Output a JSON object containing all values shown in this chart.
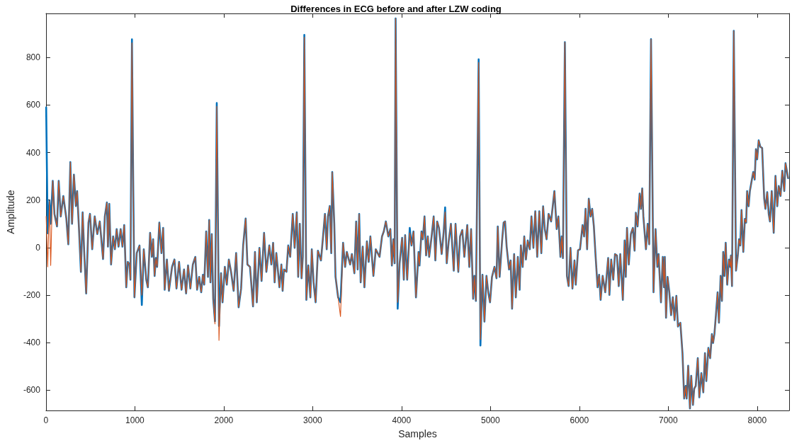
{
  "chart_data": {
    "type": "line",
    "title": "Differences in ECG before and after LZW coding",
    "xlabel": "Samples",
    "ylabel": "Amplitude",
    "xlim": [
      0,
      8360
    ],
    "xticks": [
      0,
      1000,
      2000,
      3000,
      4000,
      5000,
      6000,
      7000,
      8000
    ],
    "ylim": [
      -685,
      985
    ],
    "yticks": [
      -600,
      -400,
      -200,
      0,
      200,
      400,
      600,
      800
    ],
    "line_style": "solid",
    "x": [
      2,
      19,
      39,
      53,
      76,
      95,
      124,
      143,
      166,
      195,
      229,
      251,
      274,
      293,
      314,
      336,
      350,
      370,
      393,
      412,
      430,
      452,
      478,
      495,
      520,
      548,
      577,
      605,
      642,
      662,
      685,
      697,
      712,
      732,
      755,
      775,
      795,
      816,
      840,
      860,
      880,
      903,
      920,
      939,
      950,
      967,
      982,
      995,
      1021,
      1052,
      1078,
      1100,
      1128,
      1146,
      1171,
      1191,
      1205,
      1222,
      1236,
      1250,
      1275,
      1299,
      1318,
      1335,
      1360,
      1383,
      1418,
      1445,
      1468,
      1497,
      1525,
      1553,
      1576,
      1598,
      1624,
      1652,
      1680,
      1700,
      1723,
      1746,
      1765,
      1780,
      1802,
      1822,
      1836,
      1850,
      1865,
      1881,
      1901,
      1921,
      1946,
      1969,
      1986,
      2012,
      2034,
      2057,
      2082,
      2111,
      2139,
      2167,
      2195,
      2218,
      2246,
      2266,
      2295,
      2329,
      2351,
      2371,
      2401,
      2425,
      2453,
      2479,
      2512,
      2535,
      2555,
      2572,
      2591,
      2626,
      2648,
      2662,
      2677,
      2705,
      2725,
      2747,
      2776,
      2797,
      2821,
      2837,
      2855,
      2875,
      2889,
      2906,
      2929,
      2951,
      2974,
      2990,
      3010,
      3033,
      3059,
      3093,
      3114,
      3138,
      3158,
      3172,
      3192,
      3209,
      3220,
      3243,
      3257,
      3286,
      3313,
      3342,
      3365,
      3384,
      3421,
      3441,
      3469,
      3489,
      3506,
      3523,
      3540,
      3563,
      3582,
      3610,
      3630,
      3649,
      3683,
      3710,
      3752,
      3780,
      3800,
      3823,
      3851,
      3874,
      3891,
      3907,
      3922,
      3933,
      3956,
      3978,
      4006,
      4025,
      4040,
      4063,
      4092,
      4112,
      4134,
      4162,
      4191,
      4202,
      4224,
      4239,
      4258,
      4276,
      4295,
      4310,
      4338,
      4361,
      4380,
      4400,
      4421,
      4451,
      4474,
      4490,
      4508,
      4530,
      4555,
      4587,
      4607,
      4638,
      4658,
      4683,
      4706,
      4739,
      4762,
      4782,
      4805,
      4819,
      4836,
      4867,
      4887,
      4910,
      4932,
      4955,
      4975,
      4995,
      5017,
      5045,
      5068,
      5082,
      5103,
      5130,
      5148,
      5164,
      5182,
      5209,
      5227,
      5243,
      5266,
      5285,
      5308,
      5328,
      5342,
      5362,
      5380,
      5399,
      5419,
      5442,
      5461,
      5483,
      5504,
      5526,
      5549,
      5572,
      5592,
      5611,
      5631,
      5654,
      5682,
      5719,
      5745,
      5764,
      5787,
      5800,
      5815,
      5837,
      5860,
      5879,
      5900,
      5922,
      5945,
      5959,
      5985,
      6007,
      6036,
      6053,
      6070,
      6087,
      6106,
      6126,
      6144,
      6163,
      6183,
      6205,
      6222,
      6239,
      6262,
      6291,
      6324,
      6338,
      6358,
      6381,
      6401,
      6423,
      6443,
      6460,
      6489,
      6509,
      6522,
      6536,
      6556,
      6579,
      6602,
      6621,
      6635,
      6655,
      6678,
      6692,
      6707,
      6720,
      6749,
      6768,
      6786,
      6806,
      6834,
      6857,
      6877,
      6891,
      6918,
      6938,
      6952,
      6961,
      6975,
      6992,
      7012,
      7032,
      7051,
      7071,
      7091,
      7109,
      7136,
      7160,
      7179,
      7196,
      7207,
      7224,
      7244,
      7258,
      7278,
      7292,
      7309,
      7332,
      7349,
      7372,
      7394,
      7413,
      7428,
      7451,
      7471,
      7491,
      7504,
      7519,
      7536,
      7555,
      7570,
      7589,
      7604,
      7618,
      7632,
      7646,
      7663,
      7683,
      7697,
      7705,
      7717,
      7737,
      7762,
      7782,
      7796,
      7810,
      7824,
      7844,
      7862,
      7876,
      7887,
      7904,
      7918,
      7938,
      7956,
      7972,
      7986,
      8000,
      8017,
      8036,
      8056,
      8079,
      8093,
      8113,
      8130,
      8144,
      8164,
      8186,
      8206,
      8226,
      8243,
      8263,
      8283,
      8305,
      8319,
      8348
    ],
    "series": [
      {
        "color": "#0072bd",
        "values": [
          590,
          60,
          196,
          100,
          281,
          142,
          89,
          281,
          131,
          217,
          122,
          14,
          360,
          100,
          307,
          175,
          238,
          89,
          -102,
          148,
          -18,
          -193,
          105,
          142,
          -7,
          131,
          57,
          110,
          -48,
          131,
          190,
          4,
          184,
          -71,
          47,
          -7,
          78,
          4,
          78,
          4,
          95,
          -167,
          -60,
          -71,
          -135,
          876,
          238,
          -209,
          -23,
          9,
          -241,
          -7,
          -135,
          -167,
          62,
          -39,
          35,
          -119,
          -44,
          -81,
          105,
          -23,
          83,
          -177,
          -50,
          -182,
          -81,
          -50,
          -172,
          -60,
          -177,
          -92,
          -193,
          -75,
          -172,
          -71,
          -39,
          -177,
          -123,
          -188,
          -114,
          -156,
          68,
          -123,
          116,
          -146,
          57,
          -215,
          -310,
          608,
          -330,
          -108,
          -230,
          -81,
          -156,
          -50,
          -102,
          -182,
          -23,
          -251,
          -172,
          9,
          122,
          -71,
          -81,
          -247,
          -18,
          -230,
          -1,
          -140,
          62,
          -102,
          9,
          -71,
          20,
          -146,
          -23,
          -167,
          -71,
          -182,
          -92,
          -102,
          9,
          -39,
          142,
          -1,
          148,
          -123,
          100,
          -129,
          -39,
          895,
          -220,
          -75,
          -209,
          -7,
          -146,
          -230,
          -13,
          -54,
          35,
          142,
          -7,
          131,
          175,
          -23,
          318,
          100,
          -123,
          -209,
          -230,
          20,
          -81,
          -18,
          -71,
          -27,
          -108,
          110,
          -92,
          142,
          -146,
          4,
          -167,
          26,
          -60,
          47,
          -119,
          -7,
          -39,
          47,
          68,
          110,
          47,
          78,
          -75,
          35,
          -66,
          964,
          -257,
          -66,
          41,
          -135,
          52,
          -135,
          83,
          9,
          68,
          -209,
          -18,
          -75,
          68,
          35,
          131,
          -33,
          47,
          -39,
          47,
          131,
          -54,
          110,
          83,
          -27,
          68,
          169,
          -66,
          26,
          100,
          -97,
          100,
          -102,
          47,
          74,
          -39,
          95,
          -81,
          78,
          -215,
          -119,
          -224,
          792,
          -412,
          -114,
          -311,
          -119,
          -188,
          -230,
          -123,
          -81,
          -129,
          89,
          -123,
          26,
          105,
          110,
          4,
          -92,
          -54,
          -257,
          -27,
          -209,
          -39,
          -177,
          9,
          -81,
          47,
          -50,
          30,
          -7,
          131,
          -1,
          153,
          -39,
          153,
          -23,
          174,
          78,
          35,
          142,
          110,
          238,
          78,
          131,
          -39,
          47,
          -44,
          864,
          -119,
          -162,
          -1,
          -172,
          -54,
          -156,
          -11,
          -7,
          95,
          47,
          163,
          -7,
          206,
          131,
          163,
          89,
          -39,
          -167,
          -114,
          -220,
          -119,
          -188,
          -44,
          -199,
          -50,
          -135,
          -27,
          -33,
          -162,
          -27,
          -220,
          30,
          -123,
          83,
          -71,
          57,
          83,
          -13,
          147,
          89,
          227,
          163,
          249,
          131,
          -7,
          100,
          14,
          877,
          -188,
          78,
          -81,
          -27,
          -230,
          -39,
          -167,
          -39,
          -295,
          -123,
          -188,
          -284,
          -209,
          -305,
          -203,
          -332,
          -316,
          -444,
          -635,
          -582,
          -635,
          -497,
          -677,
          -539,
          -662,
          -593,
          -582,
          -465,
          -630,
          -528,
          -609,
          -444,
          -561,
          -422,
          -465,
          -364,
          -401,
          -364,
          -284,
          -188,
          -316,
          -119,
          -224,
          -18,
          -119,
          20,
          -156,
          -50,
          -81,
          -33,
          -162,
          912,
          -97,
          -33,
          35,
          9,
          158,
          -18,
          121,
          105,
          238,
          174,
          238,
          281,
          318,
          286,
          414,
          371,
          451,
          424,
          419,
          206,
          163,
          233,
          142,
          110,
          238,
          62,
          302,
          174,
          259,
          217,
          323,
          238,
          355,
          292
        ]
      },
      {
        "color": "#d95319",
        "values": [
          131,
          -81,
          196,
          -75,
          281,
          142,
          89,
          281,
          131,
          217,
          122,
          14,
          360,
          100,
          307,
          175,
          238,
          89,
          -102,
          148,
          -18,
          -193,
          105,
          142,
          -7,
          131,
          57,
          110,
          -48,
          131,
          190,
          4,
          184,
          -71,
          47,
          -7,
          78,
          4,
          78,
          4,
          95,
          -167,
          -60,
          -71,
          -135,
          861,
          238,
          -209,
          -23,
          9,
          -200,
          -7,
          -135,
          -167,
          62,
          -39,
          35,
          -119,
          -44,
          -81,
          105,
          -23,
          83,
          -177,
          -50,
          -182,
          -81,
          -50,
          -172,
          -60,
          -177,
          -92,
          -193,
          -75,
          -172,
          -71,
          -39,
          -177,
          -123,
          -188,
          -114,
          -156,
          68,
          -123,
          116,
          -146,
          57,
          -215,
          -321,
          594,
          -390,
          -108,
          -230,
          -81,
          -156,
          -50,
          -102,
          -182,
          -23,
          -251,
          -172,
          9,
          122,
          -71,
          -81,
          -247,
          -18,
          -230,
          -1,
          -140,
          62,
          -102,
          9,
          -71,
          20,
          -146,
          -23,
          -167,
          -71,
          -182,
          -92,
          -102,
          9,
          -39,
          142,
          -1,
          148,
          -123,
          100,
          -129,
          -39,
          885,
          -220,
          -75,
          -209,
          -7,
          -146,
          -230,
          -13,
          -54,
          35,
          142,
          -7,
          131,
          175,
          -23,
          318,
          100,
          -123,
          -209,
          -290,
          20,
          -81,
          -18,
          -71,
          -27,
          -108,
          110,
          -92,
          142,
          -146,
          4,
          -167,
          26,
          -60,
          47,
          -119,
          -7,
          -39,
          47,
          68,
          110,
          47,
          78,
          -75,
          35,
          -66,
          964,
          -230,
          -66,
          41,
          -135,
          52,
          -135,
          62,
          9,
          68,
          -209,
          -18,
          -75,
          68,
          35,
          131,
          -33,
          47,
          -39,
          47,
          131,
          -54,
          110,
          83,
          -27,
          68,
          150,
          -66,
          26,
          100,
          -97,
          100,
          -102,
          47,
          74,
          -39,
          95,
          -81,
          78,
          -215,
          -119,
          -224,
          779,
          -386,
          -114,
          -311,
          -119,
          -188,
          -230,
          -123,
          -81,
          -129,
          89,
          -123,
          26,
          105,
          110,
          4,
          -92,
          -54,
          -257,
          -27,
          -209,
          -39,
          -177,
          9,
          -81,
          47,
          -50,
          30,
          -7,
          131,
          -1,
          153,
          -39,
          153,
          -23,
          174,
          78,
          35,
          142,
          110,
          238,
          78,
          131,
          -39,
          47,
          -44,
          864,
          -119,
          -162,
          -1,
          -172,
          -54,
          -156,
          -11,
          -7,
          95,
          47,
          163,
          -7,
          206,
          131,
          163,
          89,
          -39,
          -167,
          -114,
          -220,
          -119,
          -188,
          -44,
          -199,
          -50,
          -135,
          -27,
          -33,
          -162,
          -27,
          -220,
          30,
          -123,
          83,
          -71,
          57,
          83,
          -13,
          147,
          89,
          227,
          163,
          249,
          131,
          -7,
          100,
          14,
          877,
          -188,
          78,
          -81,
          -27,
          -230,
          -39,
          -167,
          -39,
          -295,
          -123,
          -188,
          -284,
          -209,
          -305,
          -203,
          -332,
          -316,
          -444,
          -635,
          -582,
          -635,
          -497,
          -677,
          -539,
          -662,
          -593,
          -582,
          -465,
          -630,
          -528,
          -609,
          -444,
          -561,
          -422,
          -465,
          -364,
          -401,
          -364,
          -284,
          -188,
          -316,
          -119,
          -224,
          -18,
          -119,
          20,
          -156,
          -50,
          -81,
          -33,
          -162,
          912,
          -97,
          -33,
          35,
          9,
          158,
          -18,
          121,
          105,
          238,
          174,
          238,
          281,
          318,
          286,
          414,
          371,
          451,
          424,
          419,
          206,
          163,
          233,
          142,
          110,
          238,
          62,
          302,
          174,
          259,
          217,
          323,
          238,
          355,
          292
        ]
      }
    ]
  }
}
